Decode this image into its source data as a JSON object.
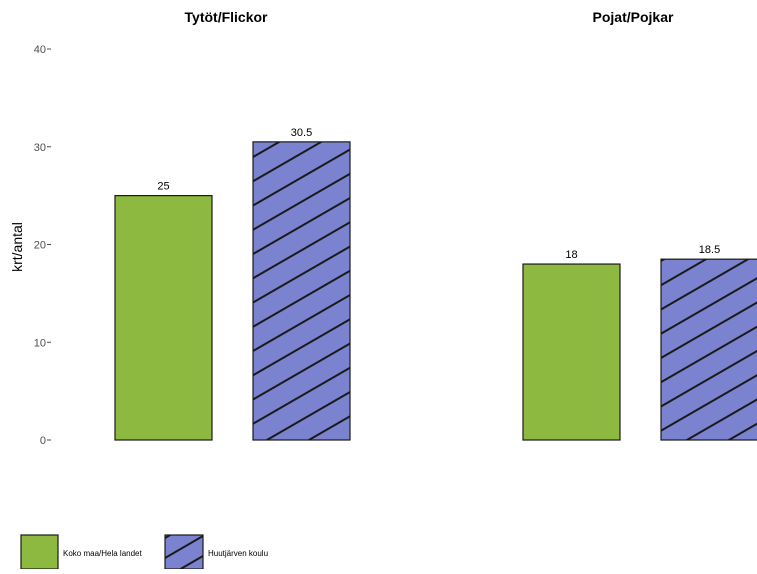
{
  "chart_data": {
    "type": "bar",
    "ylabel": "krt/antal",
    "ylim": [
      0,
      40
    ],
    "yticks": [
      0,
      10,
      20,
      30,
      40
    ],
    "categories": [
      "Koko maa/Hela landet",
      "Huutjärven koulu"
    ],
    "legend": {
      "position": "bottom-left"
    },
    "grid": false,
    "colors": {
      "Koko maa/Hela landet": "#8db940",
      "Huutjärven koulu": "#7b82cf",
      "stroke": "#1a1a1a"
    },
    "panels": [
      {
        "title": "Tytöt/Flickor",
        "series": [
          {
            "name": "Koko maa/Hela landet",
            "value": 25,
            "label": "25",
            "pattern": "solid"
          },
          {
            "name": "Huutjärven koulu",
            "value": 30.5,
            "label": "30.5",
            "pattern": "hatched"
          }
        ]
      },
      {
        "title": "Pojat/Pojkar",
        "series": [
          {
            "name": "Koko maa/Hela landet",
            "value": 18,
            "label": "18",
            "pattern": "solid"
          },
          {
            "name": "Huutjärven koulu",
            "value": 18.5,
            "label": "18.5",
            "pattern": "hatched"
          }
        ]
      }
    ]
  }
}
